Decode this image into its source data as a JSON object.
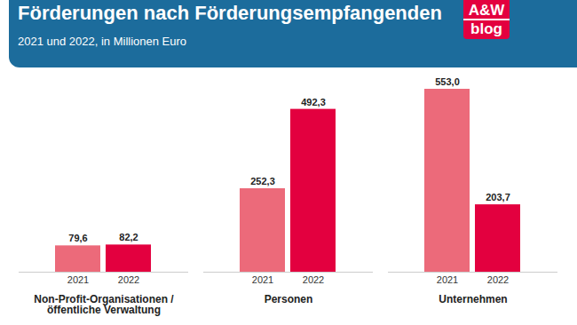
{
  "chart_data": {
    "type": "bar",
    "title": "Förderungen nach Förderungsempfangenden",
    "subtitle": "2021 und 2022, in Millionen Euro",
    "logo": [
      "A&W",
      "blog"
    ],
    "categories": [
      "Non-Profit-Organisationen / öffentliche Verwaltung",
      "Personen",
      "Unternehmen"
    ],
    "series": [
      {
        "name": "2021",
        "color": "#ec6a7a",
        "values": [
          79.6,
          252.3,
          553.0
        ],
        "value_labels": [
          "79,6",
          "252,3",
          "553,0"
        ]
      },
      {
        "name": "2022",
        "color": "#e3003f",
        "values": [
          82.2,
          492.3,
          203.7
        ],
        "value_labels": [
          "82,2",
          "492,3",
          "203,7"
        ]
      }
    ],
    "data_labels": true,
    "tick_labels": "x",
    "grid": false
  }
}
